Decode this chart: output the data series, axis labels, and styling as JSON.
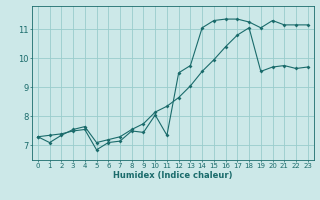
{
  "xlabel": "Humidex (Indice chaleur)",
  "ylabel": "",
  "background_color": "#cce8e8",
  "grid_color": "#99cccc",
  "line_color": "#1a6b6b",
  "xlim": [
    -0.5,
    23.5
  ],
  "ylim": [
    6.5,
    11.8
  ],
  "xticks": [
    0,
    1,
    2,
    3,
    4,
    5,
    6,
    7,
    8,
    9,
    10,
    11,
    12,
    13,
    14,
    15,
    16,
    17,
    18,
    19,
    20,
    21,
    22,
    23
  ],
  "yticks": [
    7,
    8,
    9,
    10,
    11
  ],
  "line1_x": [
    0,
    1,
    2,
    3,
    4,
    5,
    6,
    7,
    8,
    9,
    10,
    11,
    12,
    13,
    14,
    15,
    16,
    17,
    18,
    19,
    20,
    21,
    22,
    23
  ],
  "line1_y": [
    7.3,
    7.35,
    7.4,
    7.5,
    7.55,
    6.85,
    7.1,
    7.15,
    7.5,
    7.45,
    8.05,
    7.35,
    9.5,
    9.75,
    11.05,
    11.3,
    11.35,
    11.35,
    11.25,
    11.05,
    11.3,
    11.15,
    11.15,
    11.15
  ],
  "line2_x": [
    0,
    1,
    2,
    3,
    4,
    5,
    6,
    7,
    8,
    9,
    10,
    11,
    12,
    13,
    14,
    15,
    16,
    17,
    18,
    19,
    20,
    21,
    22,
    23
  ],
  "line2_y": [
    7.3,
    7.1,
    7.35,
    7.55,
    7.65,
    7.1,
    7.2,
    7.3,
    7.55,
    7.75,
    8.15,
    8.35,
    8.65,
    9.05,
    9.55,
    9.95,
    10.4,
    10.8,
    11.05,
    9.55,
    9.7,
    9.75,
    9.65,
    9.7
  ],
  "xlabel_fontsize": 6,
  "tick_fontsize": 5,
  "marker_size": 2.0,
  "line_width": 0.8
}
